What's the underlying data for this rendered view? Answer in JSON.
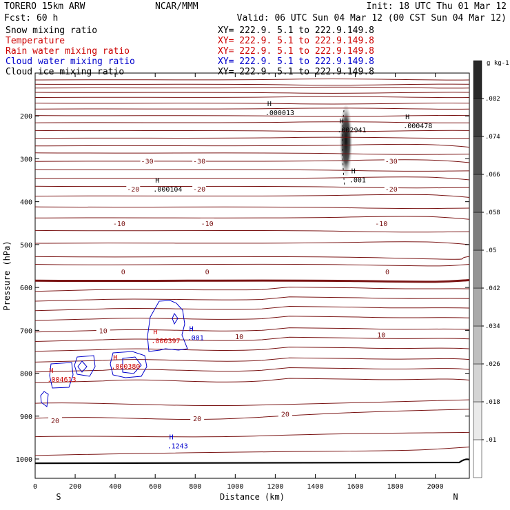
{
  "header": {
    "model": "TORERO  15km ARW",
    "org": "NCAR/MMM",
    "init": "Init: 18 UTC Thu 01 Mar 12",
    "fcst": "Fcst:    60 h",
    "valid": "Valid: 06 UTC Sun 04 Mar 12 (00 CST Sun 04 Mar 12)"
  },
  "legend": [
    {
      "label": "Snow mixing ratio",
      "color": "#000000",
      "xy": "XY= 222.9.  5.1 to 222.9.149.8"
    },
    {
      "label": "Temperature",
      "color": "#cc0000",
      "xy": "XY= 222.9.  5.1 to 222.9.149.8"
    },
    {
      "label": "Rain water mixing ratio",
      "color": "#cc0000",
      "xy": "XY= 222.9.  5.1 to 222.9.149.8"
    },
    {
      "label": "Cloud water mixing ratio",
      "color": "#0000cc",
      "xy": "XY= 222.9.  5.1 to 222.9.149.8"
    },
    {
      "label": "Cloud ice mixing ratio",
      "color": "#000000",
      "xy": "XY= 222.9.  5.1 to 222.9.149.8"
    }
  ],
  "colors": {
    "temperature": "#7a1414",
    "freezing": "#7a1414",
    "rain": "#cc0000",
    "cloud_water": "#0000cc",
    "snow": "#000000",
    "ice": "#000000"
  },
  "chart_data": {
    "type": "cross-section",
    "xlabel": "Distance (km)",
    "ylabel": "Pressure (hPa)",
    "xlim": [
      0,
      2170
    ],
    "ylim": [
      100,
      1045
    ],
    "x_ticks": [
      0,
      200,
      400,
      600,
      800,
      1000,
      1200,
      1400,
      1600,
      1800,
      2000
    ],
    "y_ticks": [
      200,
      300,
      400,
      500,
      600,
      700,
      800,
      900,
      1000
    ],
    "x_end_labels": {
      "left": "S",
      "right": "N"
    },
    "temperature_contour_levels": [
      -30,
      -20,
      -10,
      0,
      10,
      20
    ],
    "temperature_labels": [
      {
        "text": "-30",
        "x": 560,
        "p": 305
      },
      {
        "text": "-30",
        "x": 820,
        "p": 305
      },
      {
        "text": "-30",
        "x": 1780,
        "p": 305
      },
      {
        "text": "-20",
        "x": 490,
        "p": 370
      },
      {
        "text": "-20",
        "x": 820,
        "p": 370
      },
      {
        "text": "-20",
        "x": 1780,
        "p": 370
      },
      {
        "text": "-10",
        "x": 420,
        "p": 450
      },
      {
        "text": "-10",
        "x": 860,
        "p": 450
      },
      {
        "text": "-10",
        "x": 1730,
        "p": 450
      },
      {
        "text": "0",
        "x": 440,
        "p": 563
      },
      {
        "text": "0",
        "x": 860,
        "p": 563
      },
      {
        "text": "0",
        "x": 1760,
        "p": 563
      },
      {
        "text": "10",
        "x": 340,
        "p": 700
      },
      {
        "text": "10",
        "x": 1020,
        "p": 714
      },
      {
        "text": "10",
        "x": 1730,
        "p": 710
      },
      {
        "text": "20",
        "x": 100,
        "p": 910
      },
      {
        "text": "20",
        "x": 810,
        "p": 905
      },
      {
        "text": "20",
        "x": 1250,
        "p": 895
      }
    ],
    "maxima_labels": [
      {
        "series": "snow",
        "x": 1150,
        "p": 193,
        "text": ".000013"
      },
      {
        "series": "snow",
        "x": 1840,
        "p": 224,
        "text": ".000478"
      },
      {
        "series": "snow",
        "x": 1510,
        "p": 233,
        "text": ".002941"
      },
      {
        "series": "snow",
        "x": 1570,
        "p": 350,
        "text": ".001"
      },
      {
        "series": "ice",
        "x": 590,
        "p": 372,
        "text": ".000104"
      },
      {
        "series": "rain",
        "x": 580,
        "p": 725,
        "text": ".000397"
      },
      {
        "series": "rain",
        "x": 380,
        "p": 785,
        "text": ".000380"
      },
      {
        "series": "rain",
        "x": 60,
        "p": 815,
        "text": ".004613"
      },
      {
        "series": "cloud_water",
        "x": 760,
        "p": 718,
        "text": ".001"
      },
      {
        "series": "cloud_water",
        "x": 660,
        "p": 970,
        "text": ".1243"
      }
    ],
    "colorbar": {
      "unit": "g kg-1",
      "levels": [
        0.01,
        0.018,
        0.026,
        0.034,
        0.042,
        0.05,
        0.058,
        0.066,
        0.074,
        0.082
      ]
    }
  }
}
